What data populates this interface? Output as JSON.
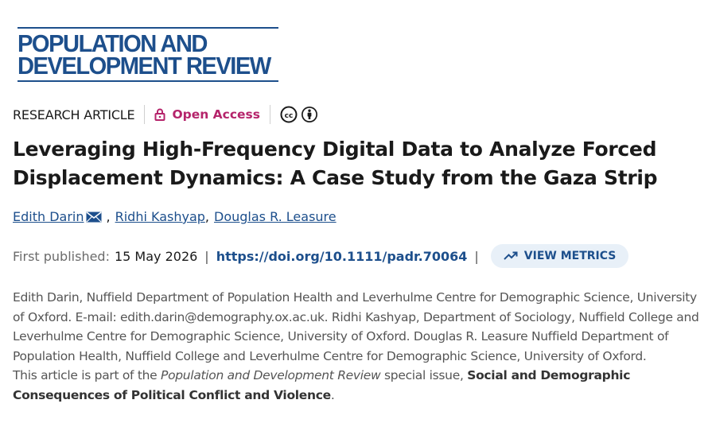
{
  "journal": {
    "logo_line1": "POPULATION AND",
    "logo_line2": "DEVELOPMENT REVIEW",
    "brand_color": "#1d4f8c"
  },
  "article_meta": {
    "type": "RESEARCH ARTICLE",
    "access_label": "Open Access",
    "access_icon": "lock-open-icon",
    "access_color": "#b5246b",
    "license_icons": [
      "cc-icon",
      "by-attribution-icon"
    ]
  },
  "title": "Leveraging High-Frequency Digital Data to Analyze Forced Displacement Dynamics: A Case Study from the Gaza Strip",
  "authors": [
    {
      "name": "Edith Darin",
      "corresponding": true
    },
    {
      "name": "Ridhi Kashyap",
      "corresponding": false
    },
    {
      "name": "Douglas R. Leasure",
      "corresponding": false
    }
  ],
  "publication": {
    "first_published_label": "First published:",
    "date": "15 May 2026",
    "doi": "https://doi.org/10.1111/padr.70064",
    "metrics_label": "VIEW METRICS"
  },
  "affiliations": "Edith Darin, Nuffield Department of Population Health and Leverhulme Centre for Demographic Science, University of Oxford. E-mail: edith.darin@demography.ox.ac.uk. Ridhi Kashyap, Department of Sociology, Nuffield College and Leverhulme Centre for Demographic Science, University of Oxford. Douglas R. Leasure Nuffield Department of Population Health, Nuffield College and Leverhulme Centre for Demographic Science, University of Oxford.",
  "special_issue": {
    "prefix": "This article is part of the ",
    "journal_name": "Population and Development Review",
    "middle": " special issue, ",
    "issue_title": "Social and Demographic Consequences of Political Conflict and Violence",
    "suffix": "."
  }
}
